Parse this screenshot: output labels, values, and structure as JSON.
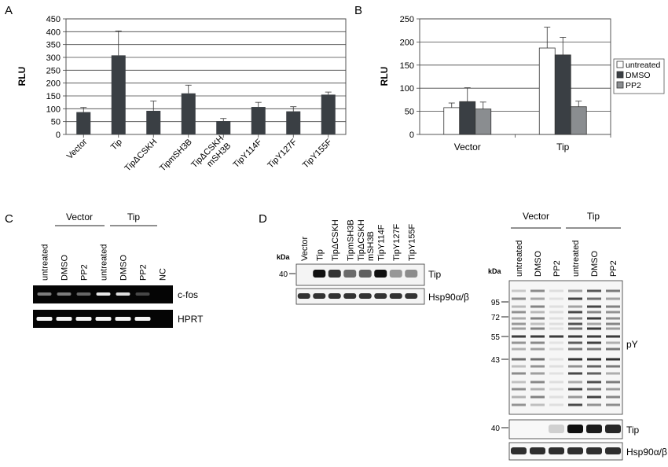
{
  "panels": {
    "a": "A",
    "b": "B",
    "c": "C",
    "d": "D"
  },
  "chart_data": [
    {
      "type": "bar",
      "ylabel": "RLU",
      "ylim": [
        0,
        450
      ],
      "yticks": [
        0,
        50,
        100,
        150,
        200,
        250,
        300,
        350,
        400,
        450
      ],
      "grid": true,
      "categories": [
        "Vector",
        "Tip",
        "TipΔCSKH",
        "TipmSH3B",
        "TipΔCSKH mSH3B",
        "TipY114F",
        "TipY127F",
        "TipY155F"
      ],
      "category_lines": [
        [
          "Vector"
        ],
        [
          "Tip"
        ],
        [
          "TipΔCSKH"
        ],
        [
          "TipmSH3B"
        ],
        [
          "TipΔCSKH",
          "mSH3B"
        ],
        [
          "TipY114F"
        ],
        [
          "TipY127F"
        ],
        [
          "TipY155F"
        ]
      ],
      "values": [
        87,
        308,
        92,
        160,
        52,
        107,
        90,
        155
      ],
      "errors": [
        18,
        95,
        38,
        32,
        10,
        18,
        18,
        10
      ],
      "color": "#3a3f44"
    },
    {
      "type": "bar",
      "ylabel": "RLU",
      "ylim": [
        0,
        250
      ],
      "yticks": [
        0,
        50,
        100,
        150,
        200,
        250
      ],
      "grid": true,
      "legend_position": "right",
      "categories": [
        "Vector",
        "Tip"
      ],
      "series": [
        {
          "name": "untreated",
          "values": [
            58,
            187
          ],
          "errors": [
            10,
            45
          ],
          "color": "#ffffff"
        },
        {
          "name": "DMSO",
          "values": [
            71,
            172
          ],
          "errors": [
            30,
            38
          ],
          "color": "#3a3f44"
        },
        {
          "name": "PP2",
          "values": [
            55,
            60
          ],
          "errors": [
            15,
            12
          ],
          "color": "#8a8d90"
        }
      ]
    }
  ],
  "gel_c": {
    "groups": [
      "Vector",
      "Tip"
    ],
    "lanes": [
      "untreated",
      "DMSO",
      "PP2",
      "untreated",
      "DMSO",
      "PP2",
      "NC"
    ],
    "bands": [
      "c-fos",
      "HPRT"
    ],
    "cfos_intensity": [
      0.45,
      0.45,
      0.35,
      0.95,
      0.9,
      0.2,
      0.05
    ],
    "hprt_intensity": [
      0.95,
      0.95,
      0.95,
      0.95,
      0.95,
      0.95,
      0.0
    ]
  },
  "blot_d1": {
    "kda": "kDa",
    "marker": "40",
    "lanes": [
      "Vector",
      "Tip",
      "TipΔCSKH",
      "TipmSH3B",
      "TipΔCSKH mSH3B",
      "TipY114F",
      "TipY127F",
      "TipY155F"
    ],
    "lane_lines": [
      [
        "Vector"
      ],
      [
        "Tip"
      ],
      [
        "TipΔCSKH"
      ],
      [
        "TipmSH3B"
      ],
      [
        "TipΔCSKH",
        "mSH3B"
      ],
      [
        "TipY114F"
      ],
      [
        "TipY127F"
      ],
      [
        "TipY155F"
      ]
    ],
    "bands": [
      "Tip",
      "Hsp90α/β"
    ],
    "tip_intensity": [
      0.0,
      0.95,
      0.8,
      0.55,
      0.6,
      0.95,
      0.35,
      0.4
    ]
  },
  "blot_d2": {
    "kda": "kDa",
    "groups": [
      "Vector",
      "Tip"
    ],
    "lanes": [
      "untreated",
      "DMSO",
      "PP2",
      "untreated",
      "DMSO",
      "PP2"
    ],
    "markers": [
      "95",
      "72",
      "55",
      "43"
    ],
    "tip_marker": "40",
    "bands": [
      "pY",
      "Tip",
      "Hsp90α/β"
    ],
    "tip_intensity": [
      0.0,
      0.0,
      0.1,
      0.95,
      0.9,
      0.85
    ]
  }
}
